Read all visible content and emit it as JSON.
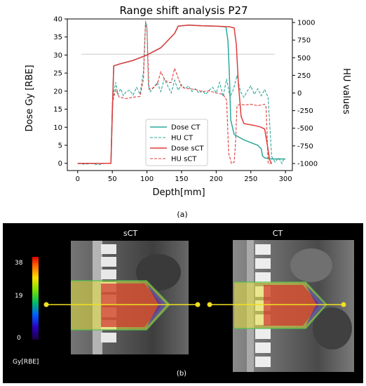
{
  "chart_data": {
    "type": "line",
    "title": "Range shift analysis P27",
    "xlabel": "Depth[mm]",
    "ylabel": "Dose Gy [RBE]",
    "y2label": "HU values",
    "xlim": [
      -15,
      310
    ],
    "ylim": [
      -2,
      40
    ],
    "y2lim": [
      -1100,
      1050
    ],
    "x_ticks": [
      0,
      50,
      100,
      150,
      200,
      250,
      300
    ],
    "y_ticks": [
      0,
      5,
      10,
      15,
      20,
      25,
      30,
      35,
      40
    ],
    "y2_ticks": [
      -1000,
      -750,
      -500,
      -250,
      0,
      250,
      500,
      750,
      1000
    ],
    "reference_line_hu": 550,
    "grid": false,
    "legend_position": "lower-center",
    "series": [
      {
        "name": "Dose CT",
        "axis": "left",
        "color": "#2ca89a",
        "style": "solid",
        "x": [
          0,
          48,
          50,
          52,
          60,
          80,
          100,
          120,
          140,
          145,
          160,
          180,
          200,
          214,
          217,
          219,
          221,
          226,
          240,
          260,
          265,
          267,
          270,
          280,
          300
        ],
        "y": [
          0,
          0,
          14,
          27,
          27.5,
          28.5,
          30,
          32,
          36,
          38,
          38.3,
          38.1,
          38,
          37.8,
          34,
          25,
          12,
          8,
          6.5,
          5,
          4,
          2,
          1.5,
          1.2,
          1.2
        ]
      },
      {
        "name": "HU CT",
        "axis": "right",
        "color": "#2ca89a",
        "style": "dashed",
        "x": [
          0,
          10,
          20,
          30,
          40,
          48,
          50,
          52,
          55,
          58,
          62,
          66,
          70,
          75,
          80,
          85,
          90,
          95,
          98,
          100,
          102,
          105,
          110,
          115,
          120,
          125,
          130,
          135,
          140,
          145,
          150,
          155,
          160,
          165,
          170,
          175,
          180,
          185,
          190,
          195,
          200,
          205,
          210,
          215,
          220,
          225,
          230,
          235,
          240,
          245,
          250,
          255,
          260,
          265,
          270,
          275,
          280,
          285,
          290,
          295,
          298
        ],
        "y": [
          -1000,
          -1010,
          -1000,
          -1020,
          -995,
          -1000,
          -150,
          0,
          150,
          -20,
          60,
          -40,
          20,
          40,
          -30,
          80,
          -20,
          300,
          1020,
          950,
          100,
          20,
          80,
          150,
          20,
          200,
          100,
          0,
          180,
          40,
          120,
          60,
          100,
          20,
          60,
          0,
          30,
          -20,
          40,
          80,
          0,
          150,
          -50,
          200,
          -60,
          50,
          250,
          20,
          -60,
          30,
          100,
          -20,
          60,
          -40,
          50,
          -60,
          -900,
          -980,
          -920,
          -1000,
          -930
        ]
      },
      {
        "name": "Dose sCT",
        "axis": "left",
        "color": "#e03c3c",
        "style": "solid",
        "x": [
          0,
          48,
          50,
          52,
          60,
          80,
          100,
          120,
          140,
          145,
          160,
          180,
          200,
          220,
          226,
          229,
          232,
          236,
          240,
          255,
          265,
          270,
          274,
          277,
          280
        ],
        "y": [
          0,
          0,
          14,
          27,
          27.5,
          28.5,
          30,
          32,
          36,
          38,
          38.3,
          38.1,
          38,
          37.8,
          37.5,
          33,
          22,
          13,
          11,
          10.5,
          10,
          9.5,
          5,
          1,
          0
        ]
      },
      {
        "name": "HU sCT",
        "axis": "right",
        "color": "#e03c3c",
        "style": "dashed",
        "x": [
          0,
          48,
          50,
          52,
          55,
          60,
          70,
          80,
          90,
          95,
          98,
          100,
          103,
          110,
          115,
          120,
          125,
          130,
          135,
          140,
          150,
          160,
          170,
          180,
          190,
          200,
          210,
          215,
          218,
          222,
          226,
          228,
          230,
          235,
          240,
          250,
          260,
          265,
          270,
          272,
          275,
          280
        ],
        "y": [
          -1000,
          -1000,
          -150,
          -60,
          50,
          -60,
          -80,
          -60,
          -50,
          200,
          1000,
          900,
          50,
          80,
          130,
          300,
          200,
          150,
          150,
          350,
          80,
          60,
          50,
          20,
          30,
          0,
          -20,
          -100,
          -850,
          -1000,
          -980,
          -700,
          -180,
          -160,
          -170,
          -160,
          -180,
          -170,
          -160,
          -200,
          -1000,
          -1000
        ]
      }
    ]
  },
  "caption_a": "(a)",
  "caption_b": "(b)",
  "panel_b": {
    "image_left_title": "sCT",
    "image_right_title": "CT",
    "colorbar_ticks": [
      "38",
      "19",
      "0"
    ],
    "colorbar_unit": "Gy[RBE]"
  }
}
